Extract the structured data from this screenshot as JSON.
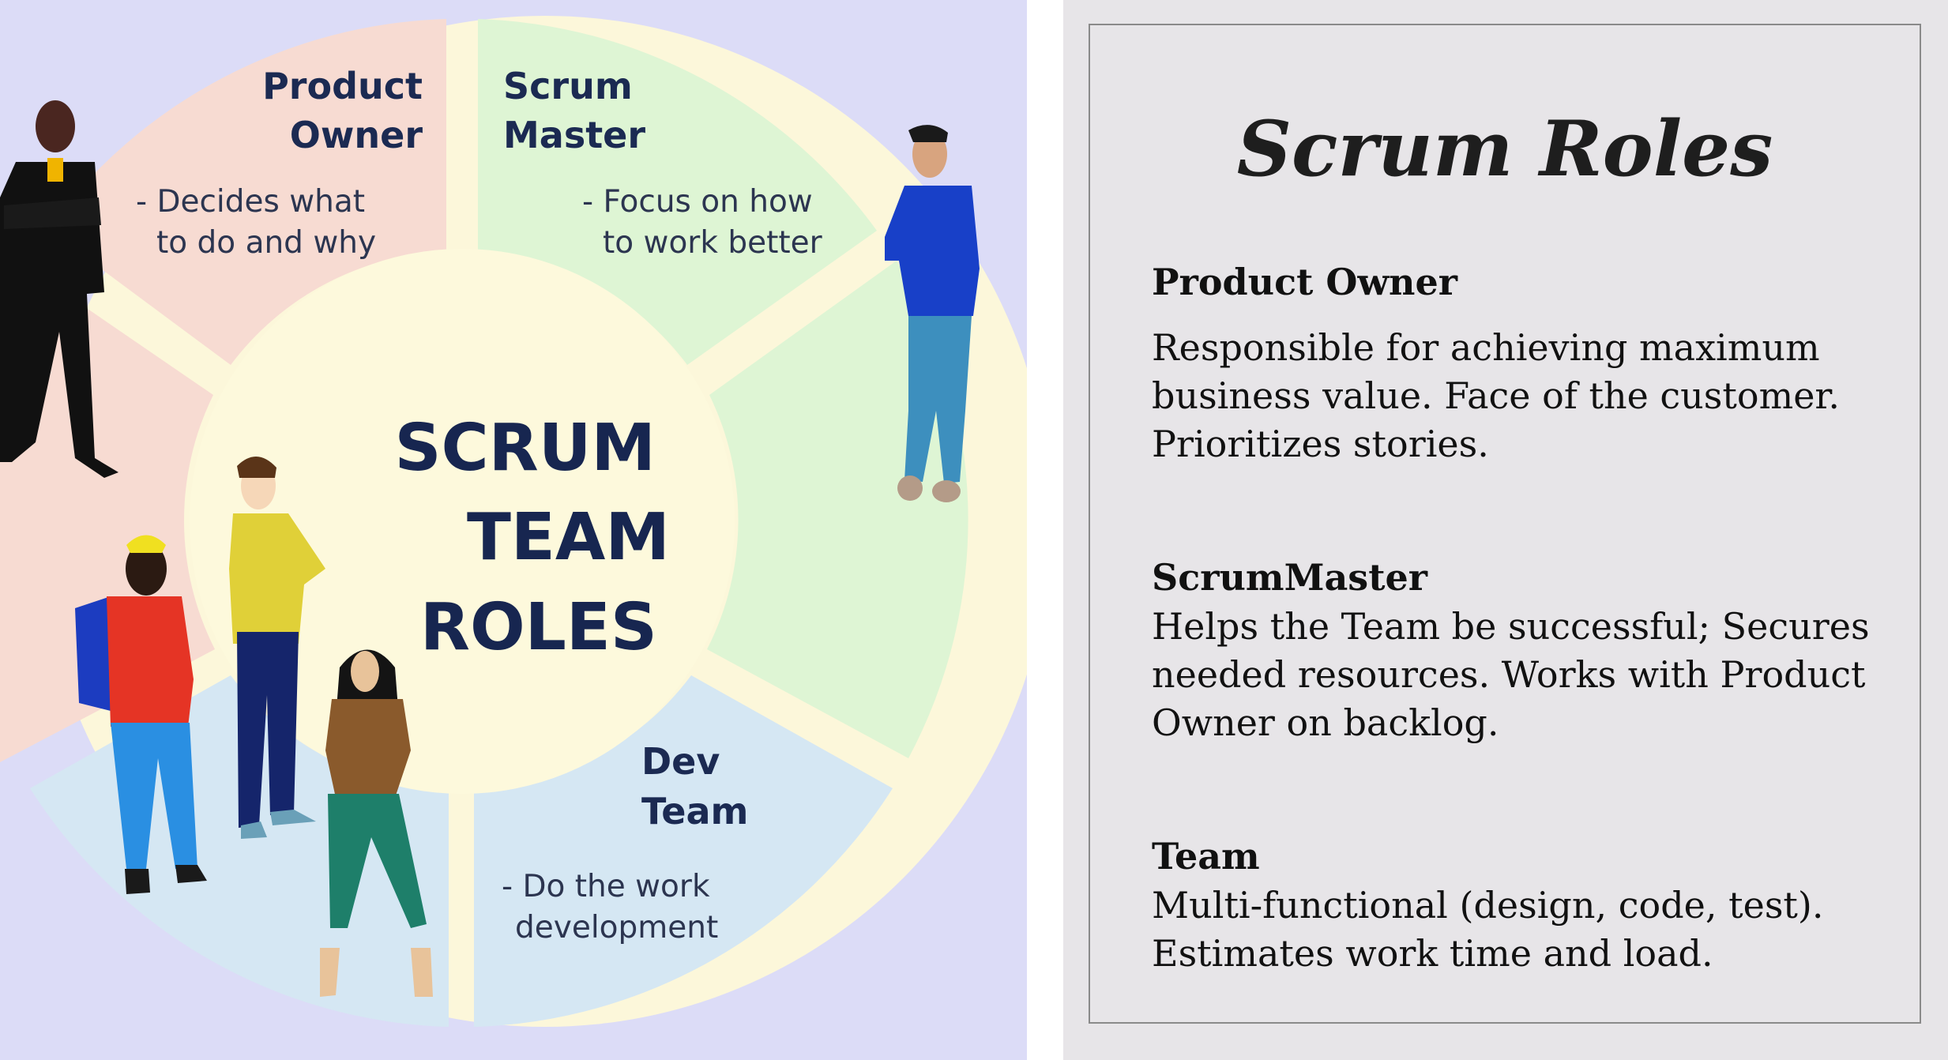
{
  "diagram": {
    "center": {
      "line1": "SCRUM",
      "line2": "TEAM",
      "line3": "ROLES"
    },
    "segments": [
      {
        "title_line1": "Product",
        "title_line2": "Owner",
        "desc_line1": "- Decides what",
        "desc_line2": "to do and why",
        "color": "#f7dbd2"
      },
      {
        "title_line1": "Scrum",
        "title_line2": "Master",
        "desc_line1": "- Focus on how",
        "desc_line2": "to work better",
        "color": "#def5d4"
      },
      {
        "title_line1": "Dev",
        "title_line2": "Team",
        "desc_line1": "- Do the work",
        "desc_line2": "development",
        "color": "#d5e7f3"
      }
    ],
    "colors": {
      "background": "#dcdcf7",
      "ring": "#fcf7da",
      "center": "#fdf9dc",
      "text": "#172650"
    }
  },
  "card": {
    "title": "Scrum Roles",
    "roles": [
      {
        "heading": "Product Owner",
        "lines": [
          "Responsible for achieving maximum",
          "business value. Face of the customer.",
          "Prioritizes stories."
        ]
      },
      {
        "heading": "ScrumMaster",
        "lines": [
          "Helps the Team be successful; Secures",
          "needed resources. Works with Product",
          "Owner on backlog."
        ]
      },
      {
        "heading": "Team",
        "lines": [
          "Multi-functional (design, code, test).",
          "Estimates work time and load."
        ]
      }
    ]
  }
}
